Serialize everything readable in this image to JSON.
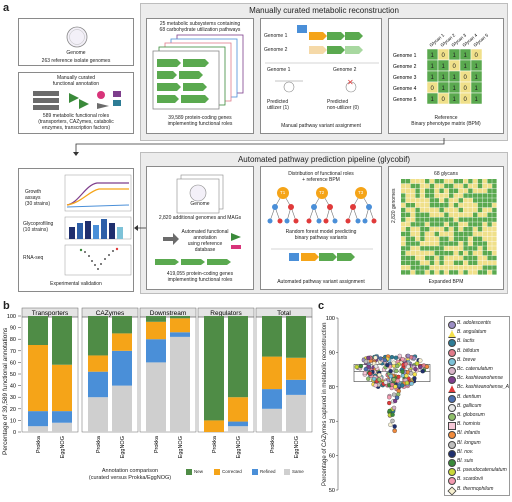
{
  "panel_letters": {
    "a": "a",
    "b": "b",
    "c": "c"
  },
  "top_section": {
    "title": "Manually curated metabolic reconstruction",
    "genome_label": "Genome",
    "isolate_genomes": "263 reference isolate genomes",
    "manual_annotation": [
      "Manually curated",
      "functional annotation"
    ],
    "roles_text": [
      "589 metabolic functional roles",
      "(transporters, CAZymes, catabolic",
      "enzymes, transcription factors)"
    ],
    "subsystems": [
      "25 metabolic subsystems containing",
      "68 carbohydrate utilization pathways"
    ],
    "genes": [
      "39,589 protein-coding genes",
      "implementing functional roles"
    ],
    "genome1": "Genome 1",
    "genome2": "Genome 2",
    "predicted_utilizer": [
      "Predicted",
      "utilizer (1)"
    ],
    "predicted_nonutilizer": [
      "Predicted",
      "non-utilizer (0)"
    ],
    "manual_assignment": "Manual pathway variant assignment",
    "bpm_caption": [
      "Reference",
      "Binary phenotype matrix (BPM)"
    ],
    "bpm_rows": [
      "Genome 1",
      "Genome 2",
      "Genome 3",
      "Genome 4",
      "Genome 5"
    ],
    "bpm_cols": [
      "Glycan 1",
      "Glycan 2",
      "Glycan 3",
      "Glycan 4",
      "Glycan 5"
    ],
    "bpm_values": [
      [
        "1",
        "0",
        "1",
        "1",
        "0"
      ],
      [
        "1",
        "1",
        "0",
        "1",
        "1"
      ],
      [
        "1",
        "1",
        "1",
        "0",
        "1"
      ],
      [
        "0",
        "1",
        "1",
        "0",
        "1"
      ],
      [
        "1",
        "0",
        "1",
        "0",
        "1"
      ]
    ]
  },
  "bottom_section": {
    "title": "Automated pathway prediction pipeline (glycobif)",
    "growth": [
      "Growth",
      "assays",
      "(30 strains)"
    ],
    "glycoprofiling": [
      "Glycoprofiling",
      "(10 strains)"
    ],
    "rnaseq": "RNA-seq",
    "exp_validation": "Experimental validation",
    "genome_label": "Genome",
    "additional_genomes": "2,820 additional genomes and MAGs",
    "auto_annotation": [
      "Automated functional",
      "annotation",
      "using reference database"
    ],
    "genes": [
      "419,055 protein-coding genes",
      "implementing functional roles"
    ],
    "distribution": [
      "Distribution of functional roles",
      "+ reference BPM"
    ],
    "tree_labels": [
      "T1",
      "T2",
      "T3"
    ],
    "rf_text": [
      "Random forest model predicting",
      "binary pathway variants"
    ],
    "auto_assignment": "Automated pathway variant assignment",
    "glycans_68": "68 glycans",
    "genomes_2820": "2,820 genomes",
    "expanded_bpm": "Expanded BPM"
  },
  "chart_b": {
    "ylabel": "Percentage of 39,589 functional annotations",
    "xlabel": [
      "Annotation comparison",
      "(curated versus Prokka/EggNOG)"
    ],
    "yticks": [
      "0",
      "10",
      "20",
      "30",
      "40",
      "50",
      "60",
      "70",
      "80",
      "90",
      "100"
    ],
    "legend": [
      "New",
      "Corrected",
      "Refined",
      "Same"
    ]
  },
  "chart_data": [
    {
      "type": "bar",
      "stacked": true,
      "facets": [
        "Transporters",
        "CAZymes",
        "Downstream",
        "Regulators",
        "Total"
      ],
      "categories": [
        "Prokka",
        "EggNOG"
      ],
      "series_order": [
        "Same",
        "Refined",
        "Corrected",
        "New"
      ],
      "colors": {
        "New": "#4f8c46",
        "Corrected": "#f5a418",
        "Refined": "#4a8fd8",
        "Same": "#cfcfcf"
      },
      "values": {
        "Transporters": {
          "Prokka": [
            5,
            13,
            57,
            25
          ],
          "EggNOG": [
            8,
            10,
            40,
            42
          ]
        },
        "CAZymes": {
          "Prokka": [
            30,
            22,
            14,
            34
          ],
          "EggNOG": [
            40,
            30,
            15,
            15
          ]
        },
        "Downstream": {
          "Prokka": [
            60,
            20,
            15,
            5
          ],
          "EggNOG": [
            82,
            4,
            12,
            2
          ]
        },
        "Regulators": {
          "Prokka": [
            0,
            0,
            10,
            90
          ],
          "EggNOG": [
            5,
            4,
            21,
            70
          ]
        },
        "Total": {
          "Prokka": [
            20,
            17,
            28,
            35
          ],
          "EggNOG": [
            32,
            13,
            19,
            36
          ]
        }
      },
      "ylim": [
        0,
        100
      ]
    },
    {
      "type": "scatter",
      "ylabel": "Percentage of CAZymes captured in metabolic reconstruction",
      "yticks": [
        "50",
        "60",
        "70",
        "80",
        "90",
        "100"
      ],
      "ylim": [
        50,
        100
      ],
      "box": {
        "q1": 81.5,
        "median": 84.5,
        "q3": 86.5
      },
      "legend_entries": [
        {
          "name": "B. adolescentis",
          "color": "#9b8ec4",
          "shape": "circle"
        },
        {
          "name": "B. angulatum",
          "color": "#f4e04d",
          "shape": "triangle"
        },
        {
          "name": "B. lactis",
          "color": "#2d7c95",
          "shape": "circle"
        },
        {
          "name": "B. bifidum",
          "color": "#e07a8a",
          "shape": "circle"
        },
        {
          "name": "B. breve",
          "color": "#7dc2d8",
          "shape": "circle"
        },
        {
          "name": "Bc. catenulatum",
          "color": "#d8b4c8",
          "shape": "circle"
        },
        {
          "name": "Bc. kashiwanohense",
          "color": "#7e3e8c",
          "shape": "circle"
        },
        {
          "name": "Bc. kashiwanohense_A",
          "color": "#e03a3a",
          "shape": "triangle"
        },
        {
          "name": "B. dentium",
          "color": "#4c6fb0",
          "shape": "circle"
        },
        {
          "name": "B. gallicum",
          "color": "#e8e8e8",
          "shape": "circle"
        },
        {
          "name": "B. globosum",
          "color": "#8fbf6a",
          "shape": "circle"
        },
        {
          "name": "B. hominis",
          "color": "#f6c8d8",
          "shape": "square"
        },
        {
          "name": "Bl. infantis",
          "color": "#f08a3c",
          "shape": "circle"
        },
        {
          "name": "Bl. longum",
          "color": "#bdbdbd",
          "shape": "circle"
        },
        {
          "name": "Bl. nov.",
          "color": "#1f2f6e",
          "shape": "circle"
        },
        {
          "name": "Bl. suis",
          "color": "#3a8a3a",
          "shape": "circle"
        },
        {
          "name": "B. pseudocatenulatum",
          "color": "#c9d93a",
          "shape": "circle"
        },
        {
          "name": "B. scardovii",
          "color": "#f29ab0",
          "shape": "circle"
        },
        {
          "name": "B. thermophilum",
          "color": "#f7f0d0",
          "shape": "diamond"
        }
      ]
    }
  ]
}
